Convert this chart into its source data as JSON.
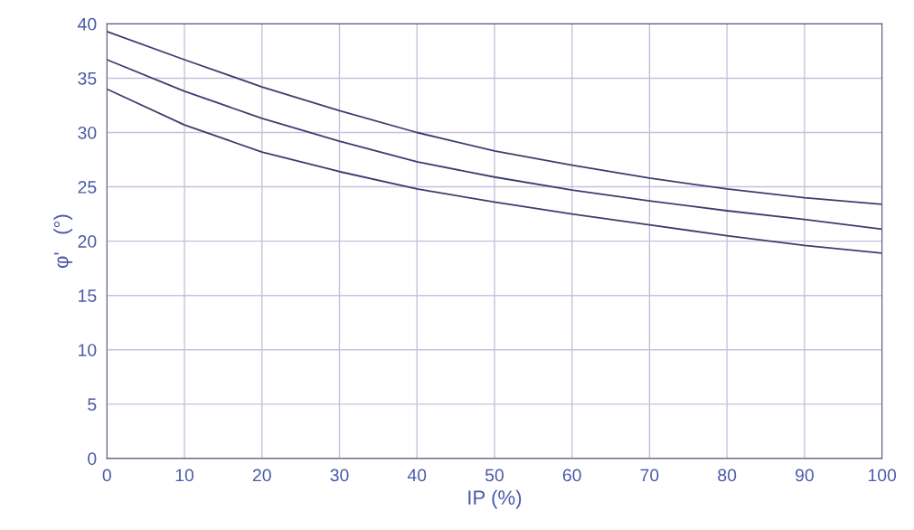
{
  "chart_data": {
    "type": "line",
    "xlabel": "IP (%)",
    "ylabel": "φ'   (°)",
    "xlim": [
      0,
      100
    ],
    "ylim": [
      0,
      40
    ],
    "xticks": [
      0,
      10,
      20,
      30,
      40,
      50,
      60,
      70,
      80,
      90,
      100
    ],
    "yticks": [
      0,
      5,
      10,
      15,
      20,
      25,
      30,
      35,
      40
    ],
    "grid": true,
    "marker": "none",
    "line_style": "solid",
    "x": [
      0,
      10,
      20,
      30,
      40,
      50,
      60,
      70,
      80,
      90,
      100
    ],
    "series": [
      {
        "color": "#3a3f6e",
        "values": [
          39.3,
          36.7,
          34.2,
          32.0,
          30.0,
          28.3,
          27.0,
          25.8,
          24.8,
          24.0,
          23.4
        ]
      },
      {
        "color": "#3a3f6e",
        "values": [
          36.7,
          33.8,
          31.3,
          29.2,
          27.3,
          25.9,
          24.7,
          23.7,
          22.8,
          22.0,
          21.1
        ]
      },
      {
        "color": "#3a3f6e",
        "values": [
          34.0,
          30.7,
          28.2,
          26.4,
          24.8,
          23.6,
          22.5,
          21.5,
          20.5,
          19.6,
          18.9
        ]
      }
    ]
  }
}
